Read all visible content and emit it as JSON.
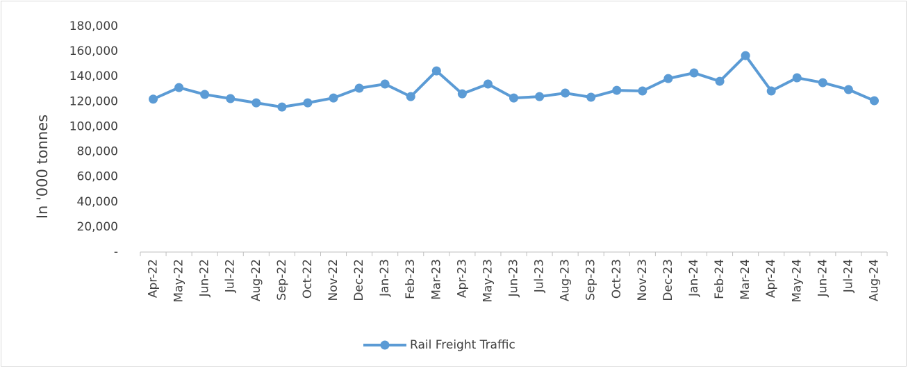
{
  "chart_data": {
    "type": "line",
    "ylabel": "In '000 tonnes",
    "categories": [
      "Apr-22",
      "May-22",
      "Jun-22",
      "Jul-22",
      "Aug-22",
      "Sep-22",
      "Oct-22",
      "Nov-22",
      "Dec-22",
      "Jan-23",
      "Feb-23",
      "Mar-23",
      "Apr-23",
      "May-23",
      "Jun-23",
      "Jul-23",
      "Aug-23",
      "Sep-23",
      "Oct-23",
      "Nov-23",
      "Dec-23",
      "Jan-24",
      "Feb-24",
      "Mar-24",
      "Apr-24",
      "May-24",
      "Jun-24",
      "Jul-24",
      "Aug-24"
    ],
    "series": [
      {
        "name": "Rail Freight Traffic",
        "color": "#5b9bd5",
        "values": [
          122000,
          131200,
          125700,
          122400,
          119000,
          115700,
          119000,
          122900,
          130700,
          134000,
          124000,
          144500,
          126200,
          134000,
          122900,
          124000,
          126800,
          123500,
          129000,
          128500,
          138400,
          142900,
          136200,
          156700,
          128500,
          139000,
          135100,
          129600,
          120700
        ]
      }
    ],
    "ylim": [
      0,
      180000
    ],
    "yticks": [
      {
        "value": 0,
        "label": "-"
      },
      {
        "value": 20000,
        "label": "20,000"
      },
      {
        "value": 40000,
        "label": "40,000"
      },
      {
        "value": 60000,
        "label": "60,000"
      },
      {
        "value": 80000,
        "label": "80,000"
      },
      {
        "value": 100000,
        "label": "100,000"
      },
      {
        "value": 120000,
        "label": "120,000"
      },
      {
        "value": 140000,
        "label": "140,000"
      },
      {
        "value": 160000,
        "label": "160,000"
      },
      {
        "value": 180000,
        "label": "180,000"
      }
    ],
    "grid": false,
    "legend": "bottom"
  }
}
